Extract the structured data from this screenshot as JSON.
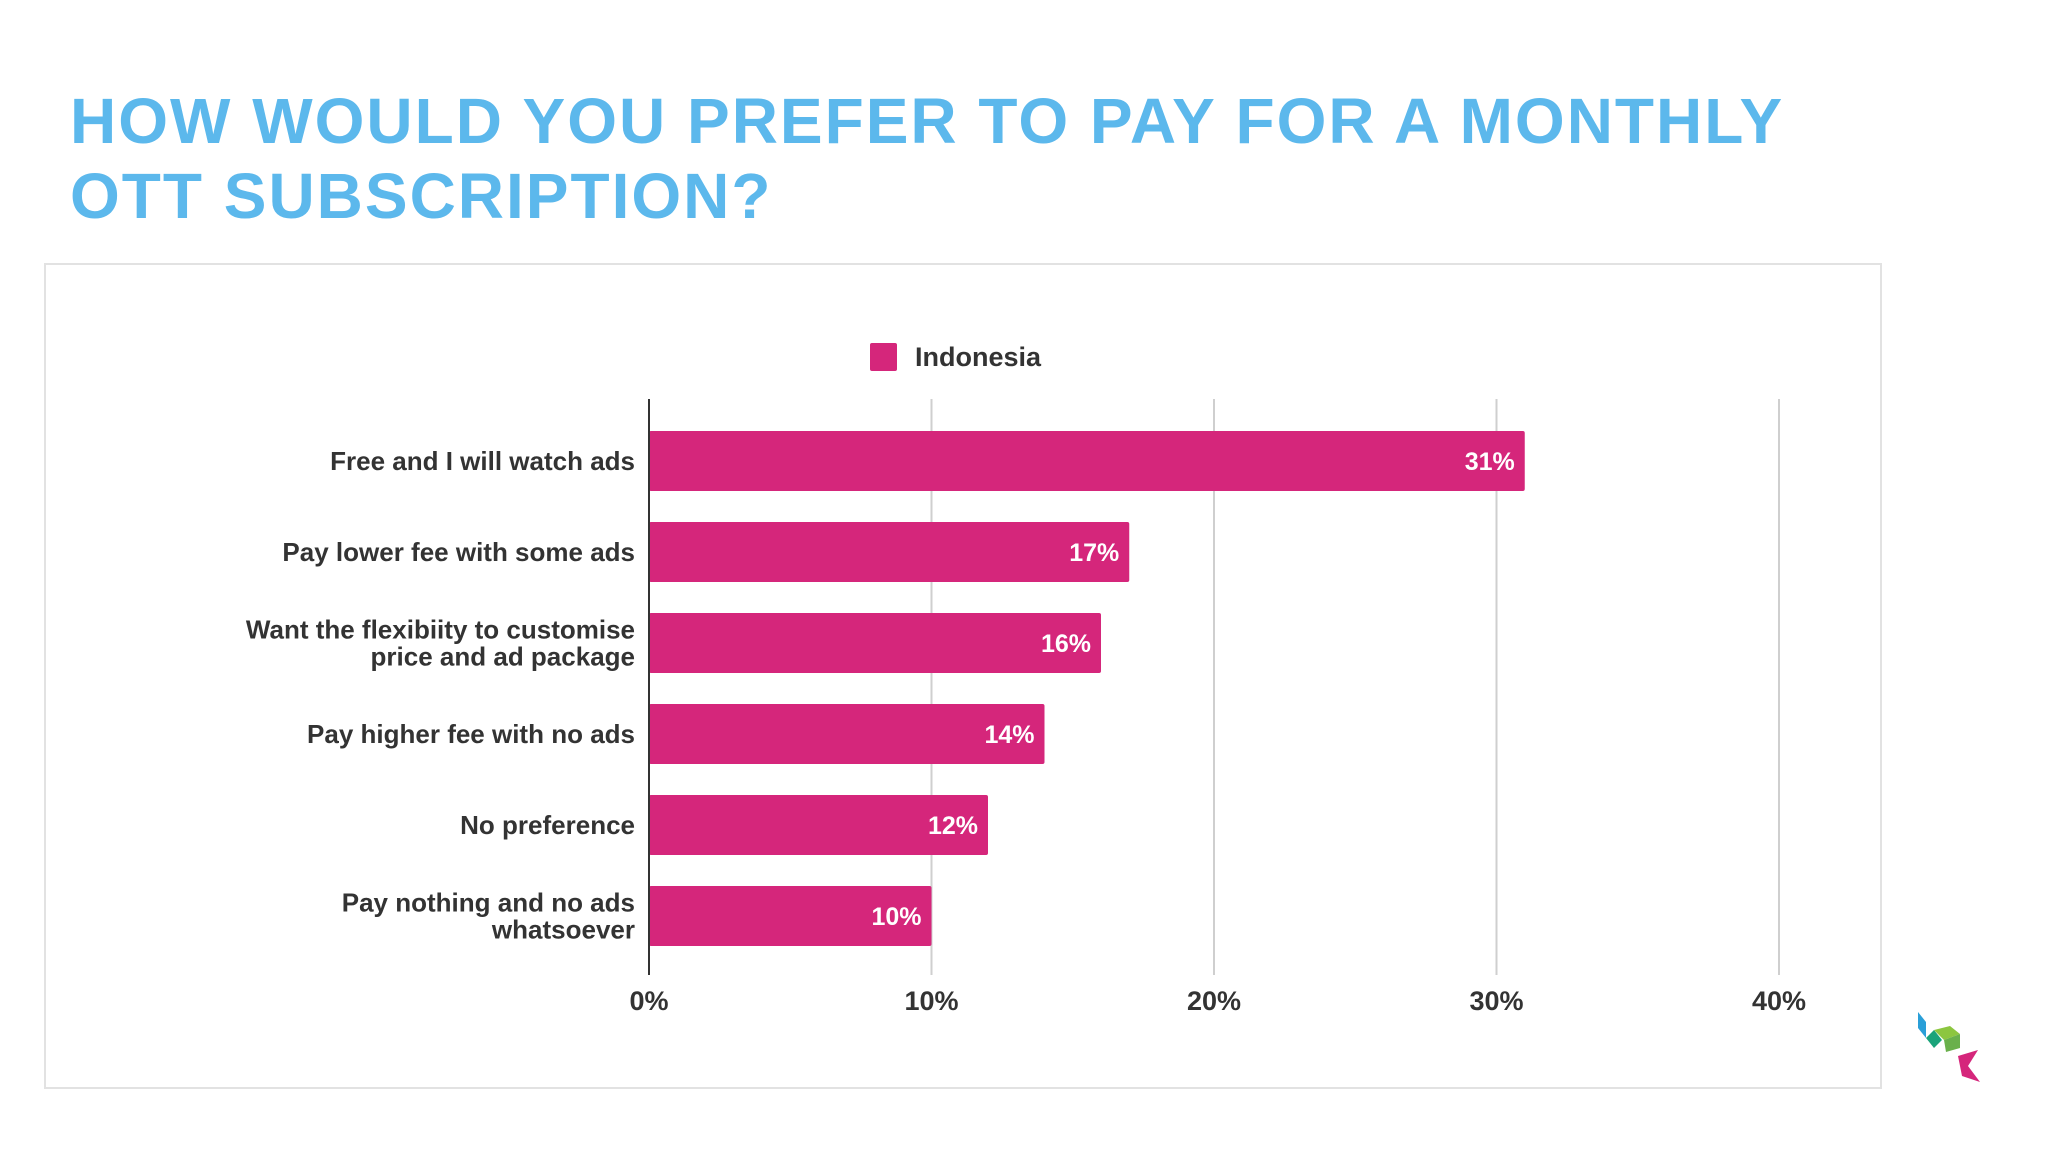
{
  "slide": {
    "title_line1": "HOW WOULD YOU PREFER TO PAY FOR A MONTHLY",
    "title_line2": "OTT SUBSCRIPTION?"
  },
  "colors": {
    "title": "#5cb8ec",
    "bar": "#d5267b",
    "grid": "#cfcfcf",
    "axis": "#333333",
    "text": "#333333"
  },
  "chart_data": {
    "type": "bar",
    "orientation": "horizontal",
    "categories": [
      [
        "Free and I will watch ads"
      ],
      [
        "Pay lower fee with some ads"
      ],
      [
        "Want the flexibiity to customise",
        "price and ad package"
      ],
      [
        "Pay higher fee with no ads"
      ],
      [
        "No preference"
      ],
      [
        "Pay nothing and no ads",
        "whatsoever"
      ]
    ],
    "series": [
      {
        "name": "Indonesia",
        "values": [
          31,
          17,
          16,
          14,
          12,
          10
        ],
        "labels": [
          "31%",
          "17%",
          "16%",
          "14%",
          "12%",
          "10%"
        ]
      }
    ],
    "xlim": [
      0,
      40
    ],
    "xticks": [
      0,
      10,
      20,
      30,
      40
    ],
    "xtick_labels": [
      "0%",
      "10%",
      "20%",
      "30%",
      "40%"
    ],
    "grid": true,
    "legend_position": "top-center"
  },
  "logo": {
    "icon": "brand-cube-icon",
    "colors": [
      "#2a9fd8",
      "#1aa37a",
      "#8cc63f",
      "#d5267b"
    ]
  }
}
